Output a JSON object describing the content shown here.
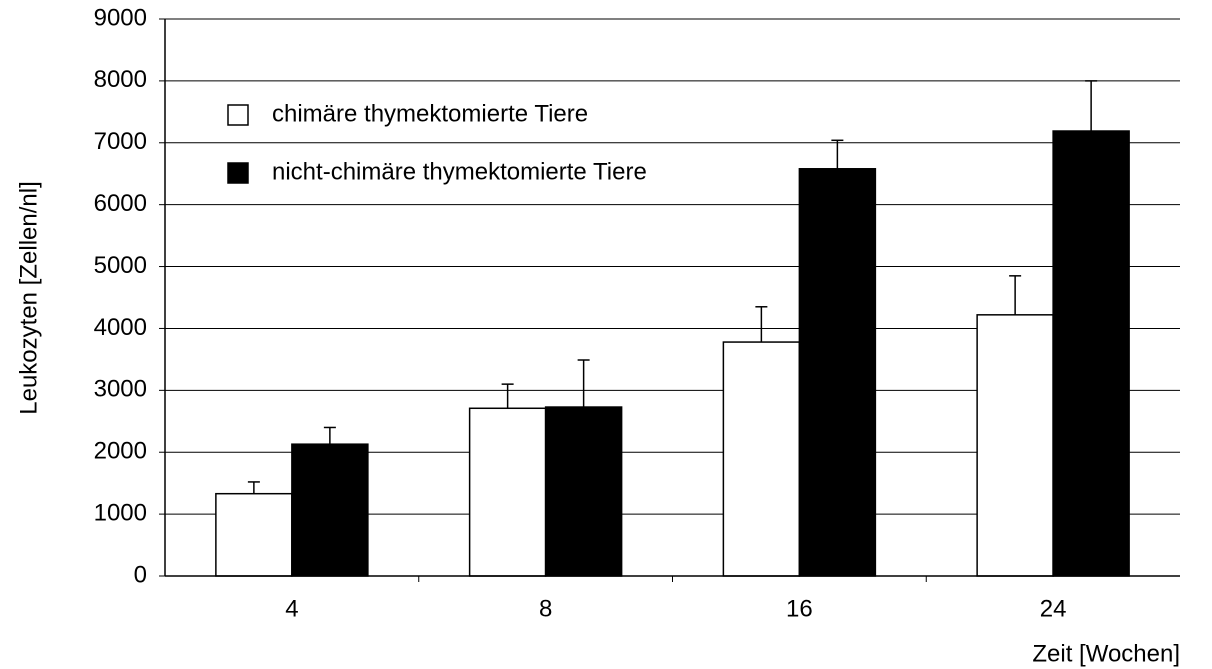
{
  "chart_data": {
    "type": "bar",
    "x_label": "Zeit [Wochen]",
    "y_label": "Leukozyten [Zellen/nl]",
    "categories": [
      "4",
      "8",
      "16",
      "24"
    ],
    "series": [
      {
        "name": "chimäre thymektomierte Tiere",
        "color": "#ffffff",
        "values": [
          1330,
          2710,
          3780,
          4220
        ],
        "errors": [
          190,
          390,
          570,
          630
        ]
      },
      {
        "name": "nicht-chimäre thymektomierte Tiere",
        "color": "#000000",
        "values": [
          2130,
          2730,
          6580,
          7190
        ],
        "errors": [
          270,
          760,
          460,
          810
        ]
      }
    ],
    "ylim": [
      0,
      9000
    ],
    "yticks": [
      0,
      1000,
      2000,
      3000,
      4000,
      5000,
      6000,
      7000,
      8000,
      9000
    ],
    "grid": true,
    "legend": "upper left"
  }
}
